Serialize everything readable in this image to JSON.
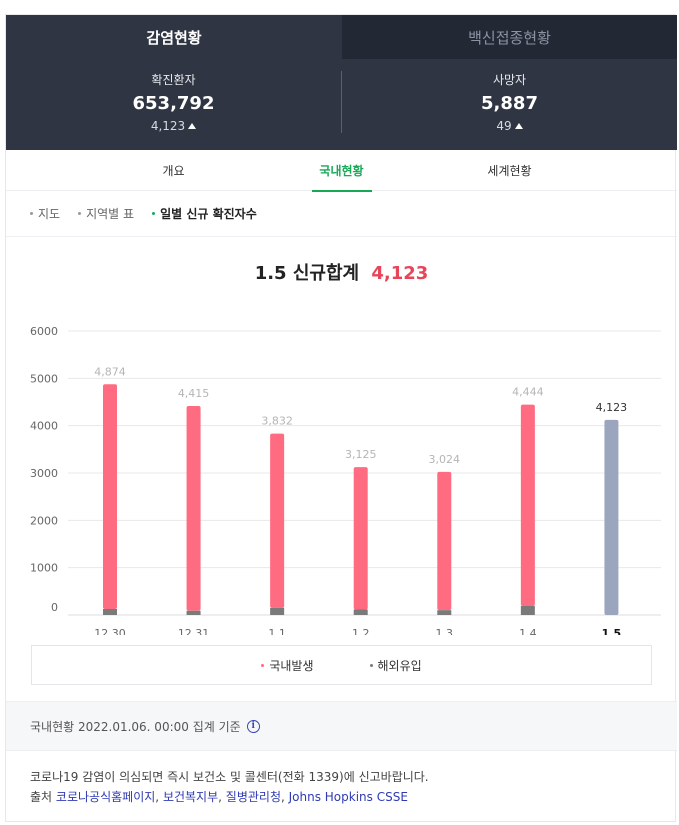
{
  "tabs": [
    {
      "label": "감염현황",
      "active": true
    },
    {
      "label": "백신접종현황",
      "active": false
    }
  ],
  "summary": {
    "confirmed_label": "확진환자",
    "confirmed_value": "653,792",
    "confirmed_delta": "4,123",
    "deaths_label": "사망자",
    "deaths_value": "5,887",
    "deaths_delta": "49"
  },
  "subtabs": [
    {
      "label": "개요",
      "active": false
    },
    {
      "label": "국내현황",
      "active": true
    },
    {
      "label": "세계현황",
      "active": false
    }
  ],
  "views": [
    {
      "label": "지도",
      "active": false
    },
    {
      "label": "지역별 표",
      "active": false
    },
    {
      "label": "일별 신규 확진자수",
      "active": true
    }
  ],
  "chart_title": {
    "prefix": "1.5 신규합계",
    "total": "4,123"
  },
  "legend": {
    "domestic": "국내발생",
    "imported": "해외유입"
  },
  "basis_text": "국내현황 2022.01.06. 00:00 집계 기준",
  "footer": {
    "line1": "코로나19 감염이 의심되면 즉시 보건소 및 콜센터(전화 1339)에 신고바랍니다.",
    "prefix": "출처",
    "sources": [
      "코로나공식홈페이지",
      "보건복지부",
      "질병관리청",
      "Johns Hopkins CSSE"
    ]
  },
  "colors": {
    "domestic": "#ff6b81",
    "imported": "#7a7a7a",
    "today": "#9ba6be",
    "accent": "#18a957",
    "total": "#e8445a"
  },
  "chart_data": {
    "type": "bar",
    "title": "1.5 신규합계 4,123",
    "categories": [
      "12.30",
      "12.31",
      "1.1",
      "1.2",
      "1.3",
      "1.4",
      "1.5"
    ],
    "series": [
      {
        "name": "국내발생",
        "values": [
          4747,
          4326,
          3681,
          3009,
          2922,
          4253,
          4123
        ]
      },
      {
        "name": "해외유입",
        "values": [
          127,
          89,
          151,
          116,
          102,
          191,
          0
        ]
      }
    ],
    "totals": [
      4874,
      4415,
      3832,
      3125,
      3024,
      4444,
      4123
    ],
    "total_labels": [
      "4,874",
      "4,415",
      "3,832",
      "3,125",
      "3,024",
      "4,444",
      "4,123"
    ],
    "highlight_category": "1.5",
    "ylim": [
      0,
      6000
    ],
    "yticks": [
      0,
      1000,
      2000,
      3000,
      4000,
      5000,
      6000
    ],
    "grid": true,
    "legend": "bottom"
  }
}
